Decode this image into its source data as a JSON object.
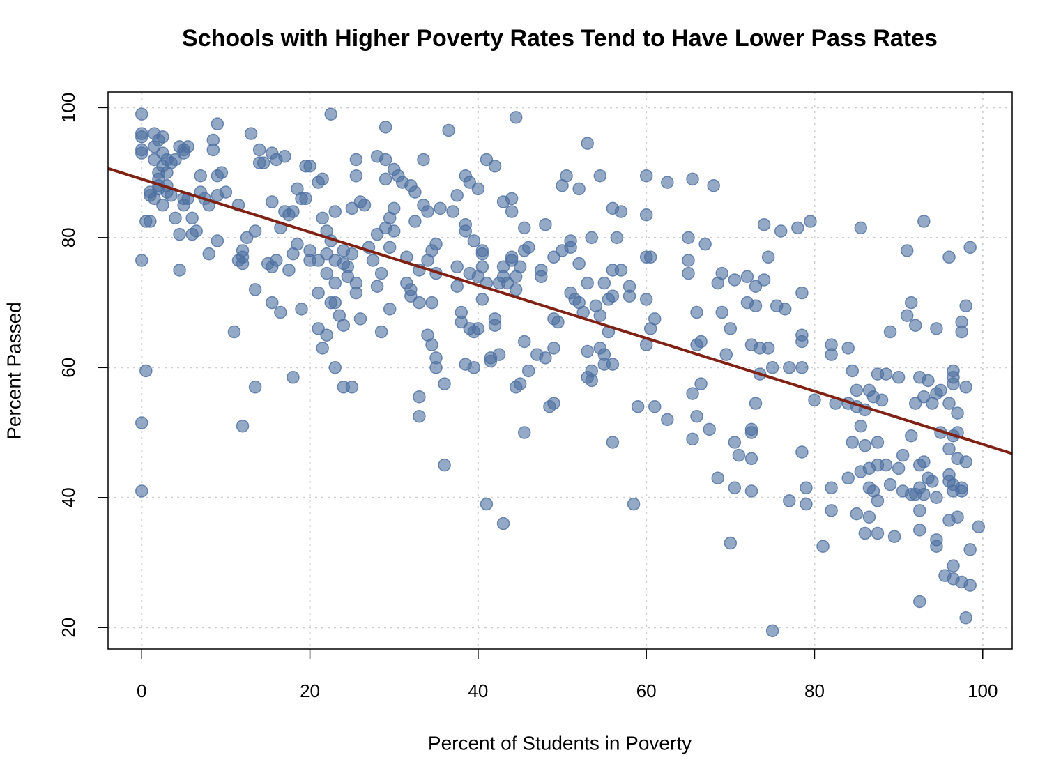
{
  "chart_data": {
    "type": "scatter",
    "title": "Schools with Higher Poverty Rates Tend to Have Lower Pass Rates",
    "x_label": "Percent of Students in Poverty",
    "y_label": "Percent Passed",
    "xlim": [
      -4,
      103.5
    ],
    "ylim": [
      16.7,
      102.4
    ],
    "xticks": [
      0,
      20,
      40,
      60,
      80,
      100
    ],
    "yticks": [
      20,
      40,
      60,
      80,
      100
    ],
    "grid": true,
    "color": "#4d6fa0",
    "trend_line": {
      "intercept": 89.0,
      "slope": -0.408,
      "color": "#7f2215"
    },
    "x": [
      0,
      0,
      0,
      0,
      0,
      0,
      0,
      0,
      0.5,
      0.5,
      1,
      1,
      1.5,
      1.5,
      1.5,
      1.5,
      2,
      2,
      2,
      2,
      2.5,
      2.5,
      2.5,
      3,
      3,
      3,
      3,
      2.5,
      3.5,
      3.5,
      4,
      4,
      4.5,
      4.5,
      4.5,
      5,
      5,
      5,
      5,
      1,
      2,
      5.5,
      5.5,
      6,
      6,
      6.5,
      7,
      7,
      7.5,
      8,
      8,
      8.5,
      8.5,
      9,
      9,
      9,
      9,
      9.5,
      10,
      11,
      11.5,
      11.5,
      12,
      12,
      12,
      12,
      12.5,
      13,
      13.5,
      13.5,
      13.5,
      14,
      14,
      14.5,
      15,
      15.5,
      15.5,
      15.5,
      16,
      15.5,
      16,
      16.5,
      16.5,
      17,
      17,
      17.5,
      17.5,
      18,
      18,
      18,
      18.5,
      18.5,
      19,
      19,
      19.5,
      19.5,
      20,
      20,
      20,
      21,
      21,
      21,
      21,
      21.5,
      21.5,
      21.5,
      22,
      22,
      22,
      22,
      22.5,
      22.5,
      22.5,
      23,
      23,
      23,
      23,
      23,
      23.5,
      24,
      24,
      24,
      24,
      24.5,
      24.5,
      25,
      25,
      25,
      25.5,
      25.5,
      25.5,
      25.5,
      26,
      26,
      26.5,
      27,
      27.5,
      28,
      28,
      28,
      28.5,
      28.5,
      29,
      29,
      29,
      29,
      29.5,
      29.5,
      29.5,
      30,
      30,
      30,
      30.5,
      31,
      31.5,
      31.5,
      32,
      32,
      32,
      32.5,
      32.5,
      33,
      33,
      33,
      33,
      33.5,
      33.5,
      34,
      34,
      34,
      34.5,
      34.5,
      34.5,
      35,
      35,
      35,
      35,
      35.5,
      36,
      36,
      36.5,
      37,
      37.5,
      37.5,
      37.5,
      38,
      38,
      38.5,
      38.5,
      38.5,
      38.5,
      39,
      39,
      39,
      39.5,
      39.5,
      39.5,
      40,
      40,
      40,
      40.5,
      40.5,
      40.5,
      40.5,
      41,
      41,
      41,
      41.5,
      41.5,
      42,
      42,
      42,
      42.5,
      42.5,
      43,
      43,
      43,
      43,
      43.5,
      44,
      44,
      44,
      44,
      44.5,
      44.5,
      44.5,
      44.5,
      45,
      45,
      45.5,
      45.5,
      45.5,
      45.5,
      46,
      46,
      47,
      47.5,
      47.5,
      48,
      48,
      48.5,
      49,
      49,
      49,
      49,
      49.5,
      50,
      50,
      50.5,
      51,
      51,
      51,
      51.5,
      52,
      52,
      52,
      52.5,
      53,
      53,
      53,
      53,
      53.5,
      53.5,
      53.5,
      54,
      54.5,
      54.5,
      54.5,
      55,
      55,
      55,
      55.5,
      55.5,
      56,
      56,
      56,
      56,
      56,
      56.5,
      57,
      57,
      58,
      58,
      58.5,
      59,
      60,
      60,
      60,
      60,
      60,
      60.5,
      60.5,
      61,
      61,
      62.5,
      62.5,
      65,
      65,
      65,
      65.5,
      65.5,
      65.5,
      66,
      66,
      66,
      66.5,
      66.5,
      67,
      67.5,
      68,
      68.5,
      68.5,
      69,
      69,
      69.5,
      70,
      70,
      70.5,
      70.5,
      70.5,
      71,
      72,
      72,
      72.5,
      72.5,
      72.5,
      72.5,
      72.5,
      73,
      73,
      73,
      73.5,
      73.5,
      74,
      74,
      74.5,
      74.5,
      75,
      75,
      75.5,
      76,
      76.5,
      77,
      77,
      78,
      78.5,
      78.5,
      78.5,
      78.5,
      78.5,
      79,
      79,
      79.5,
      80,
      81,
      82,
      82,
      82,
      82,
      82.5,
      84,
      84,
      84,
      84.5,
      84.5,
      85,
      85,
      85,
      85.5,
      85.5,
      85.5,
      86,
      86,
      86,
      86.5,
      86.5,
      86.5,
      86.5,
      87,
      87,
      87.5,
      87.5,
      87.5,
      87.5,
      87.5,
      88,
      88.5,
      88.5,
      89,
      89,
      89.5,
      90,
      90,
      90.5,
      90.5,
      91,
      91,
      91.5,
      91.5,
      91.5,
      92,
      92,
      92,
      92.5,
      92.5,
      92.5,
      92.5,
      92.5,
      92.5,
      93,
      93,
      93,
      93,
      93.5,
      93.5,
      94,
      94,
      94.5,
      94.5,
      94.5,
      94.5,
      94.5,
      95,
      95,
      95.5,
      96,
      96,
      96,
      96,
      96,
      96,
      96.5,
      96.5,
      96.5,
      96.5,
      96.5,
      96.5,
      96.5,
      96.5,
      97,
      97,
      97,
      97,
      97.5,
      97.5,
      97.5,
      97.5,
      97.5,
      98,
      98,
      98,
      98,
      98.5,
      98.5,
      98.5,
      99.5
    ],
    "values": [
      99,
      96,
      95.5,
      93.5,
      93,
      76.5,
      51.5,
      41,
      59.5,
      82.5,
      87,
      86.5,
      86,
      96,
      94,
      92,
      90,
      89,
      88,
      95,
      95.5,
      93,
      91,
      92,
      90,
      88,
      87,
      85,
      91.5,
      86.5,
      92,
      83,
      80.5,
      75,
      94,
      93.5,
      86,
      85,
      93,
      82.5,
      87.5,
      86,
      94,
      83,
      80.5,
      81,
      87,
      89.5,
      86,
      85,
      77.5,
      93.5,
      95,
      97.5,
      89.5,
      79.5,
      86.5,
      90,
      87,
      65.5,
      76.5,
      85,
      78,
      76,
      51,
      77,
      80,
      96,
      81,
      57,
      72,
      93.5,
      91.5,
      91.5,
      76,
      75.5,
      85.5,
      70,
      76.5,
      93,
      92,
      81.5,
      68.5,
      84,
      92.5,
      83.5,
      75,
      84,
      58.5,
      77.5,
      79,
      87.5,
      86,
      69,
      91,
      86,
      91,
      78,
      76.5,
      88.5,
      66,
      71.5,
      76.5,
      89,
      63,
      83,
      81,
      77.5,
      74.5,
      65,
      99,
      70,
      79.5,
      84,
      76.5,
      73,
      70,
      60,
      68,
      76,
      78,
      66.5,
      57,
      74,
      75.5,
      84.5,
      57,
      77.5,
      92,
      89.5,
      73,
      71.5,
      67.5,
      85.5,
      85,
      78.5,
      76.5,
      92.5,
      80.5,
      72.5,
      74.5,
      65.5,
      97,
      92,
      89,
      81.5,
      83,
      78.5,
      69,
      90.5,
      84.5,
      81,
      89.5,
      88.5,
      77,
      73,
      88,
      72,
      71,
      82.5,
      87,
      75,
      70,
      55.5,
      52.5,
      85,
      92,
      84,
      65,
      76.5,
      63.5,
      70,
      78,
      79,
      74.5,
      61.5,
      60,
      84.5,
      57.5,
      45,
      96.5,
      84,
      86.5,
      75.5,
      72.5,
      68.5,
      67,
      89.5,
      82,
      81,
      60.5,
      88.5,
      74.5,
      66,
      79.5,
      65.5,
      60,
      87.5,
      74,
      66,
      78,
      77.5,
      75.5,
      70.5,
      39,
      92,
      73,
      61.5,
      61,
      91,
      67.5,
      66.5,
      73,
      62,
      85.5,
      75.5,
      74,
      36,
      73,
      86,
      84,
      77,
      76.5,
      98.5,
      74,
      72,
      57,
      75.5,
      57.5,
      81.5,
      78,
      64,
      50,
      78.5,
      59.5,
      62,
      75,
      74,
      61.5,
      82,
      54,
      67.5,
      63,
      54.5,
      77,
      67,
      88,
      78,
      89.5,
      71.5,
      79.5,
      78.5,
      70.5,
      87.5,
      70,
      76,
      68.5,
      62.5,
      58.5,
      94.5,
      73,
      80,
      58,
      59.5,
      69.5,
      89.5,
      68,
      63,
      62,
      60.5,
      73,
      70.5,
      65.5,
      84.5,
      75,
      71,
      60.5,
      48.5,
      80,
      84,
      75,
      72.5,
      71,
      39,
      54,
      89.5,
      83.5,
      70.5,
      77,
      63.5,
      77,
      66,
      67.5,
      54,
      88.5,
      52,
      80,
      76.5,
      74.5,
      89,
      56,
      49,
      63.5,
      52.5,
      68.5,
      57.5,
      64,
      79,
      50.5,
      88,
      73,
      43,
      74.5,
      68.5,
      62,
      66,
      33,
      73.5,
      41.5,
      48.5,
      46.5,
      70,
      74,
      63.5,
      50.5,
      50,
      41,
      46,
      69.5,
      72.5,
      54.5,
      63,
      59,
      73.5,
      82,
      77,
      63,
      60,
      19.5,
      69.5,
      81,
      69,
      60,
      39.5,
      81.5,
      65,
      64,
      60,
      47,
      71.5,
      41.5,
      39,
      82.5,
      55,
      32.5,
      62,
      41.5,
      38,
      63.5,
      54.5,
      63,
      54.5,
      43,
      59.5,
      48.5,
      56.5,
      54,
      37.5,
      81.5,
      51,
      44,
      53.5,
      48,
      34.5,
      56.5,
      44.5,
      41.5,
      37,
      55.5,
      41,
      59,
      48.5,
      45,
      39.5,
      34.5,
      55,
      59,
      45,
      65.5,
      42,
      34,
      58.5,
      44.5,
      46.5,
      41,
      78,
      68,
      70,
      49.5,
      40.5,
      66.5,
      54.5,
      40.5,
      58.5,
      45,
      41.5,
      38,
      35,
      24,
      82.5,
      55.5,
      40.5,
      45.5,
      58,
      43,
      54.5,
      42.5,
      66,
      56,
      33.5,
      32.5,
      40,
      56.5,
      50,
      28,
      77,
      54.5,
      47.5,
      43.5,
      42.5,
      36.5,
      59.5,
      58.5,
      57.5,
      49.5,
      29.5,
      27.5,
      42,
      41,
      53,
      46,
      50,
      37,
      67,
      65.5,
      27,
      41.5,
      41,
      69.5,
      57,
      45.5,
      21.5,
      78.5,
      32,
      26.5,
      35.5
    ]
  }
}
